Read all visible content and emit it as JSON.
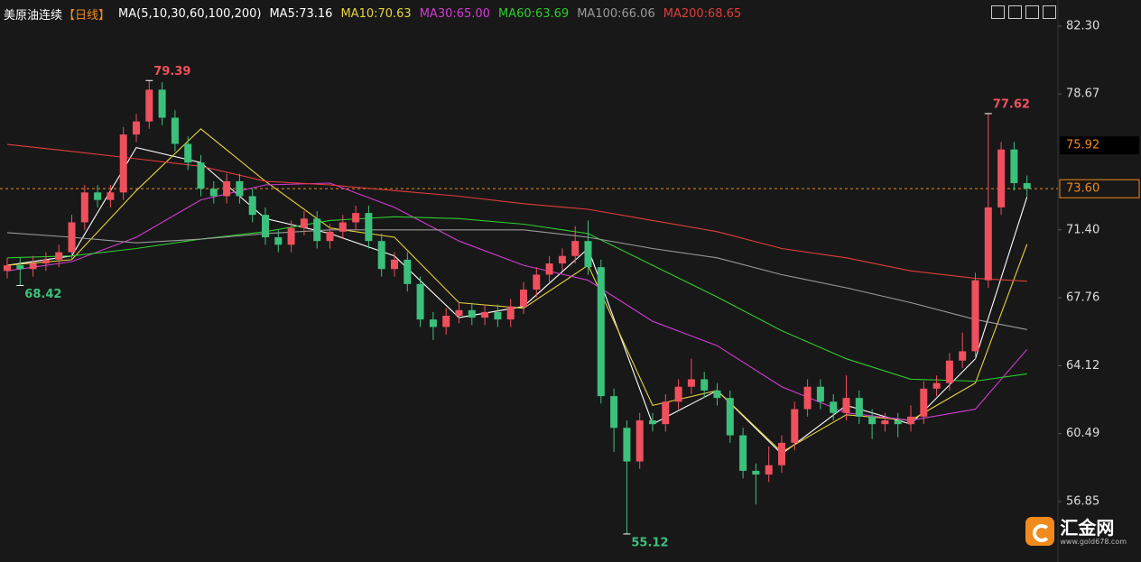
{
  "chart_data": {
    "type": "candlestick",
    "title": "美原油连续",
    "period": "【日线】",
    "ma_label": "MA(5,10,30,60,100,200)",
    "ylim": [
      53.62,
      83.7
    ],
    "yticks": [
      {
        "value": 82.3,
        "label": "82.30"
      },
      78.67,
      {
        "value": 71.4,
        "label": "71.40"
      },
      67.76,
      64.12,
      60.49,
      56.85
    ],
    "up_color": "#f0505e",
    "down_color": "#3cc17c",
    "open": [
      69.2,
      69.5,
      69.3,
      69.6,
      69.8,
      70.2,
      71.8,
      73.4,
      73.0,
      73.4,
      76.5,
      77.2,
      78.9,
      77.4,
      76.0,
      75.0,
      73.6,
      73.2,
      74.0,
      73.2,
      72.2,
      71.0,
      70.6,
      71.5,
      72.0,
      70.8,
      71.3,
      71.8,
      72.3,
      70.8,
      69.3,
      69.8,
      68.5,
      66.6,
      66.2,
      66.8,
      67.1,
      66.7,
      67.0,
      66.6,
      67.3,
      68.2,
      69.0,
      69.6,
      70.0,
      70.8,
      69.4,
      62.5,
      60.8,
      59.0,
      61.2,
      61.0,
      62.2,
      63.0,
      63.4,
      62.8,
      62.4,
      60.4,
      58.5,
      58.3,
      58.8,
      60.0,
      61.8,
      63.0,
      62.2,
      61.6,
      62.4,
      61.4,
      61.0,
      61.2,
      61.0,
      61.4,
      62.9,
      63.2,
      64.4,
      64.9,
      68.7,
      72.6,
      75.7,
      73.9
    ],
    "high": [
      69.9,
      69.9,
      70.0,
      70.2,
      70.6,
      72.2,
      73.8,
      73.8,
      73.8,
      76.9,
      77.6,
      79.39,
      79.3,
      77.8,
      76.4,
      75.4,
      74.0,
      74.4,
      74.4,
      73.6,
      72.6,
      71.4,
      71.9,
      72.4,
      72.4,
      71.7,
      72.2,
      72.7,
      72.7,
      71.2,
      70.2,
      70.2,
      68.9,
      67.0,
      67.2,
      67.5,
      67.5,
      67.4,
      67.4,
      67.7,
      68.6,
      69.4,
      70.0,
      70.4,
      71.6,
      71.9,
      69.8,
      62.9,
      61.2,
      61.6,
      61.6,
      62.6,
      63.4,
      64.5,
      63.8,
      63.2,
      62.8,
      60.8,
      58.9,
      59.8,
      60.4,
      62.2,
      63.4,
      63.4,
      62.6,
      63.6,
      62.8,
      61.8,
      61.6,
      61.6,
      62.0,
      63.3,
      63.6,
      64.8,
      65.9,
      69.1,
      77.62,
      76.1,
      76.1,
      74.3
    ],
    "low": [
      68.8,
      68.42,
      68.9,
      69.2,
      69.4,
      69.8,
      71.4,
      72.6,
      72.6,
      73.0,
      76.1,
      76.8,
      77.0,
      75.6,
      74.6,
      73.2,
      72.8,
      72.8,
      72.8,
      71.8,
      70.6,
      70.2,
      70.2,
      71.1,
      70.4,
      70.4,
      70.9,
      71.4,
      70.4,
      68.9,
      68.9,
      68.1,
      66.2,
      65.5,
      65.8,
      66.4,
      66.3,
      66.3,
      66.2,
      66.2,
      66.9,
      67.8,
      68.6,
      69.2,
      69.6,
      69.0,
      62.1,
      59.5,
      55.12,
      58.6,
      60.6,
      60.6,
      61.8,
      62.6,
      62.4,
      62.0,
      60.0,
      58.1,
      56.7,
      57.9,
      58.4,
      59.6,
      61.4,
      61.8,
      61.2,
      61.2,
      61.0,
      60.2,
      60.6,
      60.3,
      60.6,
      61.0,
      62.5,
      62.8,
      64.0,
      64.5,
      68.3,
      72.2,
      73.5,
      73.2
    ],
    "close": [
      69.5,
      69.3,
      69.6,
      69.8,
      70.2,
      71.8,
      73.4,
      73.0,
      73.4,
      76.5,
      77.2,
      78.9,
      77.4,
      76.0,
      75.0,
      73.6,
      73.2,
      74.0,
      73.2,
      72.2,
      71.0,
      70.6,
      71.5,
      72.0,
      70.8,
      71.3,
      71.8,
      72.3,
      70.8,
      69.3,
      69.8,
      68.5,
      66.6,
      66.2,
      66.8,
      67.1,
      66.7,
      67.0,
      66.6,
      67.3,
      68.2,
      69.0,
      69.6,
      70.0,
      70.8,
      69.4,
      62.5,
      60.8,
      59.0,
      61.2,
      61.0,
      62.2,
      63.0,
      63.4,
      62.8,
      62.4,
      60.4,
      58.5,
      58.3,
      58.8,
      60.0,
      61.8,
      63.0,
      62.2,
      61.6,
      62.4,
      61.4,
      61.0,
      61.2,
      61.0,
      61.4,
      62.9,
      63.2,
      64.4,
      64.9,
      68.7,
      72.6,
      75.7,
      73.9,
      73.6
    ],
    "annotations": [
      {
        "value": 79.39,
        "index": 11,
        "color": "#f0505e"
      },
      {
        "value": 68.42,
        "index": 1,
        "color": "#3cc17c"
      },
      {
        "value": 55.12,
        "index": 48,
        "color": "#3cc17c"
      },
      {
        "value": 77.62,
        "index": 76,
        "color": "#f0505e"
      }
    ],
    "last_price": {
      "value": 73.6,
      "label": "73.60"
    },
    "cursor_price": 75.92,
    "ma_index": [
      0,
      5,
      10,
      15,
      20,
      25,
      30,
      35,
      40,
      45,
      50,
      55,
      60,
      65,
      70,
      75,
      79
    ],
    "series": [
      {
        "name": "MA5:73.16",
        "color": "#ffffff",
        "values": [
          69.5,
          70.0,
          75.8,
          75.0,
          72.0,
          71.2,
          70.0,
          66.7,
          67.3,
          70.4,
          61.0,
          62.8,
          59.4,
          62.0,
          61.0,
          64.5,
          73.16
        ]
      },
      {
        "name": "MA10:70.63",
        "color": "#e6d23c",
        "values": [
          69.5,
          69.8,
          73.5,
          76.8,
          74.0,
          71.5,
          71.0,
          67.5,
          67.2,
          69.5,
          62.0,
          62.8,
          59.5,
          61.5,
          61.2,
          63.2,
          70.63
        ]
      },
      {
        "name": "MA30:65.00",
        "color": "#d23cd2",
        "values": [
          69.2,
          69.7,
          71.0,
          73.0,
          73.8,
          73.9,
          72.6,
          70.8,
          69.5,
          68.7,
          66.5,
          65.2,
          63.0,
          61.6,
          61.2,
          61.8,
          65.0
        ]
      },
      {
        "name": "MA60:63.69",
        "color": "#2ecc2e",
        "values": [
          69.9,
          70.0,
          70.4,
          70.9,
          71.3,
          71.9,
          72.1,
          72.0,
          71.7,
          71.2,
          69.5,
          67.8,
          66.0,
          64.5,
          63.4,
          63.3,
          63.69
        ]
      },
      {
        "name": "MA100:66.06",
        "color": "#9a9a9a",
        "values": [
          71.25,
          71.0,
          70.7,
          70.9,
          71.2,
          71.4,
          71.4,
          71.4,
          71.4,
          71.0,
          70.4,
          69.9,
          69.0,
          68.3,
          67.5,
          66.6,
          66.06
        ]
      },
      {
        "name": "MA200:68.65",
        "color": "#e03c3c",
        "values": [
          75.97,
          75.6,
          75.2,
          74.8,
          74.0,
          73.8,
          73.5,
          73.2,
          72.8,
          72.5,
          71.9,
          71.3,
          70.4,
          69.9,
          69.2,
          68.8,
          68.65
        ]
      }
    ]
  },
  "brand": {
    "name": "汇金网",
    "url": "www.gold678.com"
  }
}
